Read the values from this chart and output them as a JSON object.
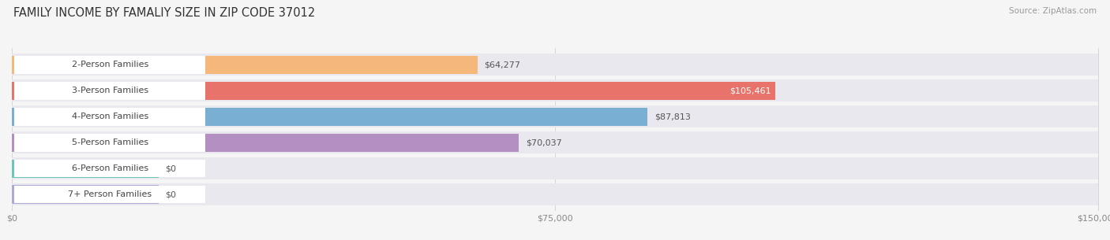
{
  "title": "FAMILY INCOME BY FAMALIY SIZE IN ZIP CODE 37012",
  "source": "Source: ZipAtlas.com",
  "categories": [
    "2-Person Families",
    "3-Person Families",
    "4-Person Families",
    "5-Person Families",
    "6-Person Families",
    "7+ Person Families"
  ],
  "values": [
    64277,
    105461,
    87813,
    70037,
    0,
    0
  ],
  "bar_colors": [
    "#f5b87a",
    "#e8736a",
    "#7aafd4",
    "#b490c2",
    "#6bc5b8",
    "#a9aad8"
  ],
  "label_colors": [
    "#555555",
    "#ffffff",
    "#555555",
    "#555555",
    "#555555",
    "#555555"
  ],
  "xmax": 150000,
  "xtick_labels": [
    "$0",
    "$75,000",
    "$150,000"
  ],
  "background_color": "#f5f5f5",
  "track_color": "#e8e8ee",
  "label_bg_color": "#ffffff",
  "title_fontsize": 10.5,
  "label_fontsize": 8,
  "value_fontsize": 8,
  "axis_fontsize": 8
}
